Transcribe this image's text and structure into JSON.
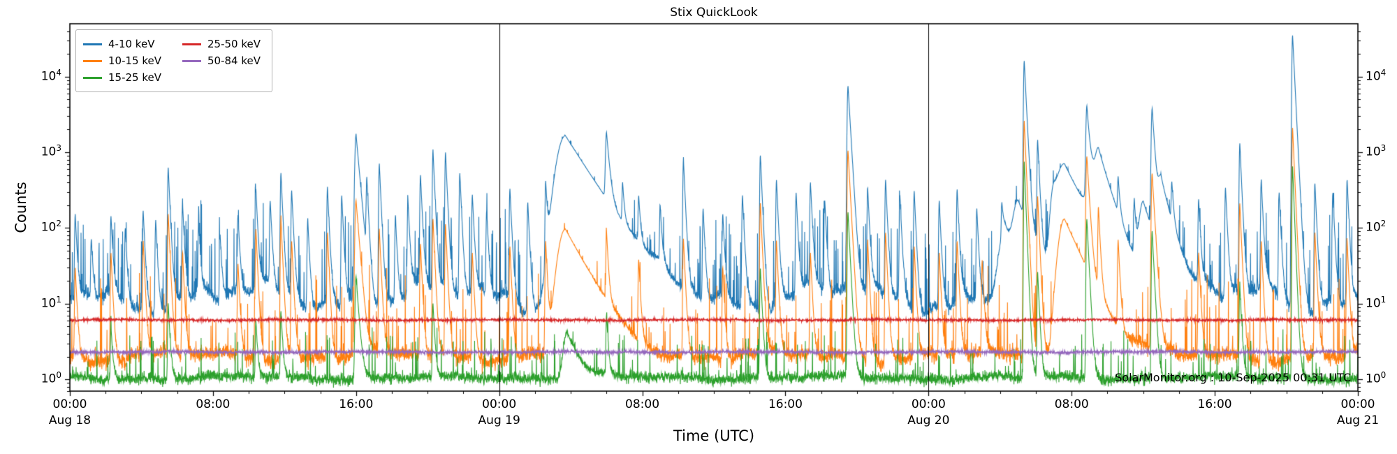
{
  "chart_data": {
    "type": "line",
    "title": "Stix QuickLook",
    "xlabel": "Time (UTC)",
    "ylabel": "Counts",
    "annotation": "SolarMonitor.org : 10-Sep-2025 00:31 UTC",
    "x_unit": "hours since Aug 18 00:00 UTC",
    "x_range_hours": [
      0,
      72
    ],
    "y_scale": "log",
    "ylim": [
      0.7,
      50000
    ],
    "y_tick_exponents": [
      0,
      1,
      2,
      3,
      4
    ],
    "x_ticks": [
      {
        "hour": 0,
        "label": "00:00",
        "date": "Aug 18"
      },
      {
        "hour": 8,
        "label": "08:00"
      },
      {
        "hour": 16,
        "label": "16:00"
      },
      {
        "hour": 24,
        "label": "00:00",
        "date": "Aug 19"
      },
      {
        "hour": 32,
        "label": "08:00"
      },
      {
        "hour": 40,
        "label": "16:00"
      },
      {
        "hour": 48,
        "label": "00:00",
        "date": "Aug 20"
      },
      {
        "hour": 56,
        "label": "08:00"
      },
      {
        "hour": 64,
        "label": "16:00"
      },
      {
        "hour": 72,
        "label": "00:00",
        "date": "Aug 21"
      }
    ],
    "minor_tick_hours": 2,
    "day_boundary_lines_hours": [
      24,
      48
    ],
    "legend_position": "upper left",
    "grid": false,
    "render_seed": 20250910,
    "series": [
      {
        "name": "4-10 keV",
        "color": "#1f77b4",
        "baseline": 12,
        "wander_dex": 0.13,
        "noise_dex": 0.04,
        "flicker_prob": 0.12,
        "flicker_dex": 1.1,
        "spikes": [
          [
            0.3,
            140
          ],
          [
            1.2,
            60
          ],
          [
            2.3,
            130
          ],
          [
            3.1,
            90
          ],
          [
            4.1,
            160
          ],
          [
            4.8,
            120
          ],
          [
            5.5,
            620
          ],
          [
            6.3,
            200
          ],
          [
            7.2,
            100
          ],
          [
            8.4,
            70
          ],
          [
            9.4,
            130
          ],
          [
            10.4,
            310
          ],
          [
            11.2,
            210
          ],
          [
            11.8,
            520
          ],
          [
            12.4,
            300
          ],
          [
            13.3,
            120
          ],
          [
            14.4,
            330
          ],
          [
            15.2,
            260
          ],
          [
            16.0,
            1700,
            0.18
          ],
          [
            16.6,
            420
          ],
          [
            17.3,
            700
          ],
          [
            18.2,
            130
          ],
          [
            18.9,
            220
          ],
          [
            19.6,
            480
          ],
          [
            20.3,
            1050
          ],
          [
            21.0,
            980
          ],
          [
            21.8,
            520
          ],
          [
            22.5,
            260
          ],
          [
            23.3,
            160
          ],
          [
            24.6,
            320
          ],
          [
            25.6,
            210
          ],
          [
            26.6,
            380
          ],
          [
            27.7,
            1650,
            1.3
          ],
          [
            30.0,
            1600,
            0.15
          ],
          [
            30.9,
            280
          ],
          [
            31.8,
            200
          ],
          [
            33.0,
            160
          ],
          [
            34.3,
            780
          ],
          [
            35.4,
            170
          ],
          [
            36.5,
            140
          ],
          [
            37.6,
            260
          ],
          [
            38.6,
            900
          ],
          [
            39.5,
            420
          ],
          [
            40.6,
            280
          ],
          [
            41.4,
            380
          ],
          [
            42.2,
            220
          ],
          [
            43.5,
            7500,
            0.12
          ],
          [
            44.6,
            320
          ],
          [
            45.6,
            420
          ],
          [
            46.4,
            260
          ],
          [
            47.2,
            300
          ],
          [
            48.6,
            220
          ],
          [
            49.6,
            310
          ],
          [
            50.7,
            170
          ],
          [
            52.1,
            140
          ],
          [
            52.3,
            90,
            0.9
          ],
          [
            53.0,
            180,
            0.7
          ],
          [
            53.35,
            16000,
            0.1
          ],
          [
            54.1,
            1400
          ],
          [
            55.0,
            260,
            0.5
          ],
          [
            55.6,
            620,
            1.1
          ],
          [
            56.85,
            3800,
            0.14
          ],
          [
            57.5,
            800,
            0.5
          ],
          [
            57.2,
            350,
            0.8
          ],
          [
            58.6,
            320
          ],
          [
            59.5,
            200
          ],
          [
            60.0,
            200,
            0.6
          ],
          [
            60.5,
            3700,
            0.13
          ],
          [
            61.0,
            400,
            0.5
          ],
          [
            61.6,
            280
          ],
          [
            63.1,
            220
          ],
          [
            64.6,
            330
          ],
          [
            65.4,
            1300
          ],
          [
            66.6,
            420
          ],
          [
            67.6,
            280
          ],
          [
            68.35,
            35000,
            0.1
          ],
          [
            69.6,
            380
          ],
          [
            70.6,
            280
          ],
          [
            71.4,
            420
          ]
        ]
      },
      {
        "name": "10-15 keV",
        "color": "#ff7f0e",
        "baseline": 2.0,
        "wander_dex": 0.05,
        "noise_dex": 0.05,
        "flicker_prob": 0.06,
        "flicker_dex": 1.1,
        "spikes": [
          [
            0.3,
            28
          ],
          [
            2.3,
            45
          ],
          [
            4.1,
            65
          ],
          [
            5.5,
            150
          ],
          [
            6.3,
            45
          ],
          [
            9.4,
            32
          ],
          [
            10.4,
            95
          ],
          [
            11.8,
            130
          ],
          [
            12.4,
            65
          ],
          [
            14.4,
            85
          ],
          [
            16.0,
            230,
            0.16
          ],
          [
            17.3,
            95
          ],
          [
            19.6,
            60
          ],
          [
            20.3,
            130
          ],
          [
            21.0,
            110
          ],
          [
            22.5,
            45
          ],
          [
            24.6,
            55
          ],
          [
            26.6,
            65
          ],
          [
            27.7,
            95,
            1.1
          ],
          [
            30.0,
            80
          ],
          [
            31.8,
            35
          ],
          [
            34.3,
            70
          ],
          [
            36.5,
            28
          ],
          [
            38.6,
            210
          ],
          [
            39.5,
            65
          ],
          [
            41.4,
            45
          ],
          [
            43.5,
            1050,
            0.11
          ],
          [
            44.6,
            65
          ],
          [
            45.6,
            85
          ],
          [
            47.2,
            55
          ],
          [
            48.6,
            45
          ],
          [
            49.6,
            65
          ],
          [
            51.0,
            35
          ],
          [
            53.35,
            2600,
            0.09
          ],
          [
            54.1,
            260
          ],
          [
            55.6,
            130,
            0.9
          ],
          [
            56.85,
            850,
            0.12
          ],
          [
            57.5,
            170
          ],
          [
            58.6,
            65
          ],
          [
            60.5,
            520,
            0.12
          ],
          [
            63.1,
            45
          ],
          [
            65.4,
            210
          ],
          [
            66.6,
            65
          ],
          [
            68.35,
            2100,
            0.09
          ],
          [
            69.6,
            85
          ],
          [
            71.4,
            65
          ]
        ]
      },
      {
        "name": "15-25 keV",
        "color": "#2ca02c",
        "baseline": 1.05,
        "wander_dex": 0.02,
        "noise_dex": 0.035,
        "flicker_prob": 0.06,
        "flicker_dex": 0.6,
        "spikes": [
          [
            2.3,
            4
          ],
          [
            5.5,
            9
          ],
          [
            10.4,
            5
          ],
          [
            11.8,
            7
          ],
          [
            16.0,
            22,
            0.14
          ],
          [
            20.3,
            9
          ],
          [
            27.8,
            3.2,
            0.6
          ],
          [
            30.0,
            6
          ],
          [
            38.6,
            28
          ],
          [
            43.5,
            160,
            0.1
          ],
          [
            53.35,
            750,
            0.08
          ],
          [
            54.1,
            25
          ],
          [
            56.85,
            130,
            0.1
          ],
          [
            60.5,
            90,
            0.1
          ],
          [
            65.4,
            16
          ],
          [
            68.35,
            650,
            0.08
          ]
        ]
      },
      {
        "name": "25-50 keV",
        "color": "#d62728",
        "baseline": 6.1,
        "wander_dex": 0.004,
        "noise_dex": 0.008,
        "flicker_prob": 0,
        "flicker_dex": 0,
        "spikes": []
      },
      {
        "name": "50-84 keV",
        "color": "#9467bd",
        "baseline": 2.3,
        "wander_dex": 0.004,
        "noise_dex": 0.01,
        "flicker_prob": 0,
        "flicker_dex": 0,
        "spikes": []
      }
    ]
  }
}
